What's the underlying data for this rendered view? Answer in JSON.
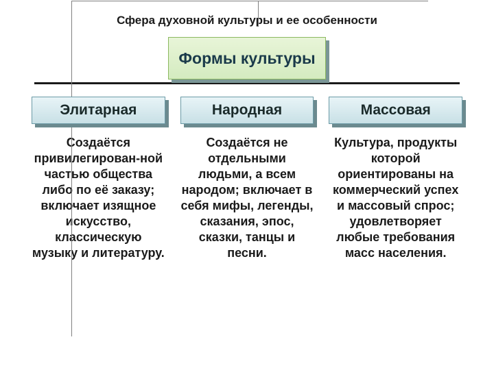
{
  "slide": {
    "title": "Сфера духовной культуры и ее особенности",
    "main_heading": "Формы культуры"
  },
  "columns": [
    {
      "label": "Элитарная",
      "description": "Создаётся привилегирован-ной частью общества либо по её заказу; включает изящное искусство, классическую музыку и литературу."
    },
    {
      "label": "Народная",
      "description": "Создаётся не отдельными людьми, а всем народом; включает в себя мифы, легенды, сказания, эпос, сказки, танцы и песни."
    },
    {
      "label": "Массовая",
      "description": "Культура, продукты которой ориентированы на коммерческий успех и массовый спрос; удовлетворяет любые требования масс населения."
    }
  ],
  "style": {
    "main_box": {
      "bg_top": "#e8f5d8",
      "bg_bottom": "#d4ebc0",
      "border": "#8bb85f",
      "shadow": "#7a9696",
      "text_color": "#1a3a4a",
      "font_size": 23
    },
    "sub_box": {
      "bg_top": "#e8f4f7",
      "bg_bottom": "#c8e0e6",
      "border": "#6b9aa6",
      "shadow": "#6b8a8f",
      "text_color": "#1a2a2a",
      "font_size": 21
    },
    "desc": {
      "font_size": 18,
      "color": "#1a1a1a"
    },
    "divider_color": "#1a1a1a",
    "background": "#ffffff",
    "frame_color": "#808080"
  }
}
